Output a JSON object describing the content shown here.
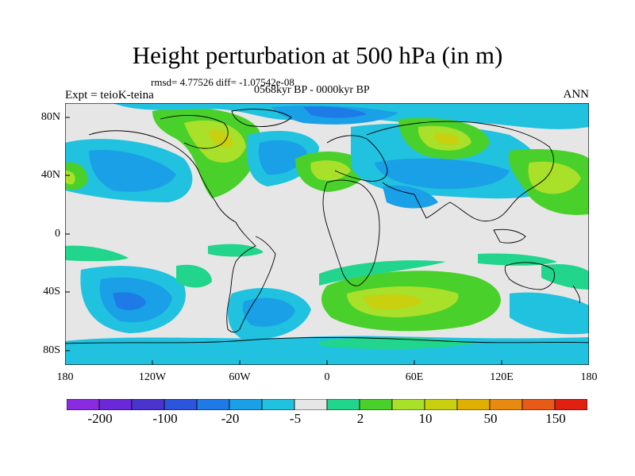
{
  "title": "Height perturbation at 500 hPa (in m)",
  "stats_line": "rmsd= 4.77526  diff= -1.07542e-08",
  "period_line": "0568kyr BP - 0000kyr BP",
  "experiment_label": "Expt = teioK-teina",
  "season_label": "ANN",
  "lat_labels": [
    "80N",
    "40N",
    "0",
    "40S",
    "80S"
  ],
  "lon_labels": [
    "180",
    "120W",
    "60W",
    "0",
    "60E",
    "120E",
    "180"
  ],
  "colorbar": {
    "labels": [
      "-200",
      "-100",
      "-20",
      "-5",
      "2",
      "10",
      "50",
      "150"
    ],
    "colors": [
      "#8a2be2",
      "#6a28d8",
      "#4b33d0",
      "#2a55dc",
      "#1e7ae6",
      "#1aa0e6",
      "#20c2e0",
      "#e6e6e6",
      "#22d58c",
      "#4ad02a",
      "#a8e02a",
      "#c8d010",
      "#e0b000",
      "#e88a10",
      "#e85a18",
      "#e02010"
    ]
  },
  "colors": {
    "neutral": "#e6e6e6",
    "strong_negative": "#1e7ae6",
    "negative": "#1aa0e6",
    "weak_negative": "#20c2e0",
    "weak_positive": "#22d58c",
    "positive": "#4ad02a",
    "strong_positive": "#a8e02a"
  }
}
